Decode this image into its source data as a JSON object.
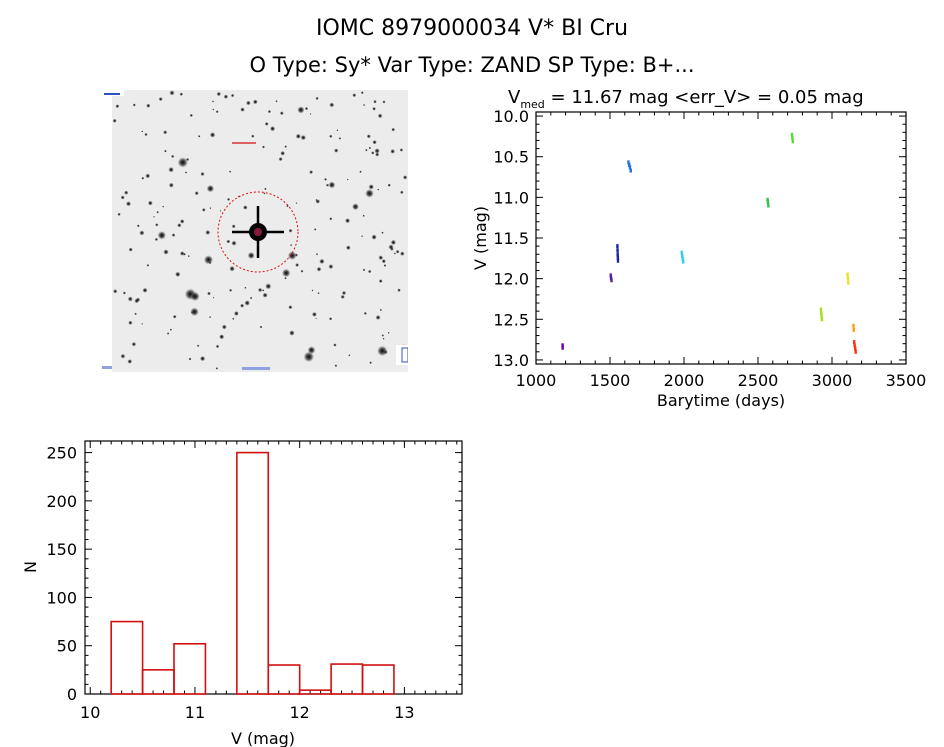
{
  "header": {
    "line1": "IOMC 8979000034    V* BI Cru",
    "line2": "O Type: Sy*   Var Type: ZAND   SP Type: B+..."
  },
  "lightcurve": {
    "title_prefix": "V",
    "title_sub": "med",
    "title_rest": " = 11.67 mag <err_V> = 0.05 mag"
  },
  "chart_data": [
    {
      "type": "scatter",
      "xlabel": "Barytime (days)",
      "ylabel": "V (mag)",
      "xlim": [
        1000,
        3500
      ],
      "ylim": [
        13.05,
        9.95
      ],
      "y_inverted": true,
      "xticks": [
        1000,
        1500,
        2000,
        2500,
        3000,
        3500
      ],
      "yticks": [
        10.0,
        10.5,
        11.0,
        11.5,
        12.0,
        12.5,
        13.0
      ],
      "ytick_labels": [
        "10.0",
        "10.5",
        "11.0",
        "11.5",
        "12.0",
        "12.5",
        "13.0"
      ],
      "grid": false,
      "series": [
        {
          "color": "#6a00b0",
          "points": [
            [
              1180,
              12.82
            ],
            [
              1180,
              12.85
            ]
          ]
        },
        {
          "color": "#5020a8",
          "points": [
            [
              1505,
              11.96
            ],
            [
              1507,
              11.99
            ],
            [
              1510,
              12.02
            ]
          ]
        },
        {
          "color": "#2020b0",
          "points": [
            [
              1550,
              11.6
            ],
            [
              1551,
              11.65
            ],
            [
              1552,
              11.7
            ],
            [
              1553,
              11.74
            ],
            [
              1554,
              11.78
            ]
          ]
        },
        {
          "color": "#1e6ee6",
          "points": [
            [
              1625,
              10.57
            ],
            [
              1630,
              10.6
            ],
            [
              1635,
              10.63
            ],
            [
              1640,
              10.67
            ]
          ]
        },
        {
          "color": "#30d0e8",
          "points": [
            [
              1985,
              11.68
            ],
            [
              1988,
              11.72
            ],
            [
              1992,
              11.76
            ],
            [
              1995,
              11.79
            ]
          ]
        },
        {
          "color": "#30c050",
          "points": [
            [
              2565,
              11.03
            ],
            [
              2567,
              11.06
            ],
            [
              2570,
              11.1
            ]
          ]
        },
        {
          "color": "#50e030",
          "points": [
            [
              2730,
              10.23
            ],
            [
              2732,
              10.27
            ],
            [
              2735,
              10.31
            ]
          ]
        },
        {
          "color": "#a8e020",
          "points": [
            [
              2925,
              12.38
            ],
            [
              2927,
              12.42
            ],
            [
              2930,
              12.46
            ],
            [
              2932,
              12.5
            ]
          ]
        },
        {
          "color": "#e8e020",
          "points": [
            [
              3105,
              11.95
            ],
            [
              3108,
              12.0
            ],
            [
              3110,
              12.05
            ]
          ]
        },
        {
          "color": "#ff9a10",
          "points": [
            [
              3145,
              12.58
            ],
            [
              3147,
              12.63
            ]
          ]
        },
        {
          "color": "#ff3010",
          "points": [
            [
              3150,
              12.78
            ],
            [
              3153,
              12.82
            ],
            [
              3157,
              12.86
            ],
            [
              3160,
              12.9
            ]
          ]
        }
      ]
    },
    {
      "type": "bar",
      "xlabel": "V (mag)",
      "ylabel": "N",
      "xlim": [
        9.95,
        13.55
      ],
      "ylim": [
        0,
        262
      ],
      "xticks": [
        10,
        11,
        12,
        13
      ],
      "yticks": [
        0,
        50,
        100,
        150,
        200,
        250
      ],
      "bin_edges": [
        10.2,
        10.5,
        10.8,
        11.1,
        11.4,
        11.7,
        12.0,
        12.3,
        12.6,
        12.9,
        13.2
      ],
      "values": [
        75,
        25,
        52,
        0,
        250,
        30,
        4,
        31,
        30,
        0
      ],
      "color": "#d01010",
      "grid": false
    }
  ]
}
